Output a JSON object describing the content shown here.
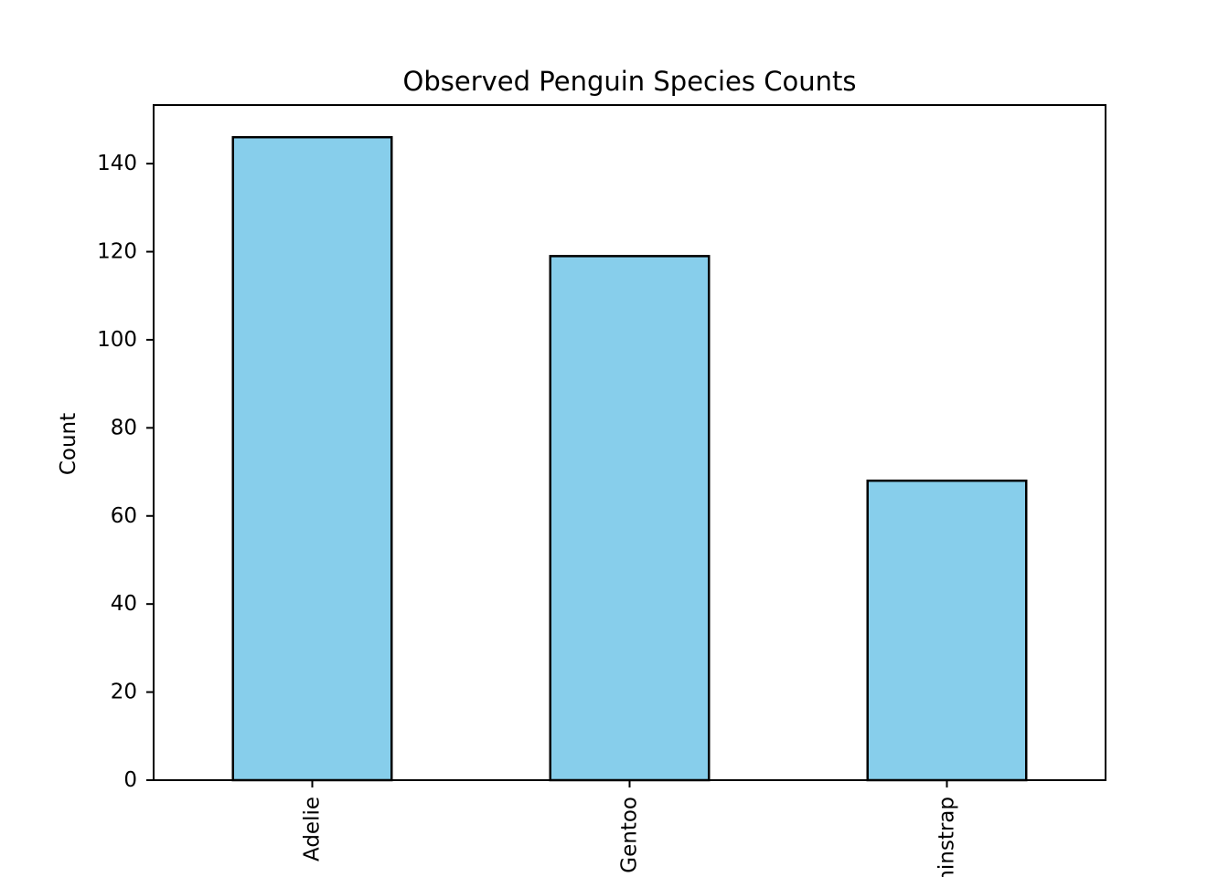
{
  "chart_data": {
    "type": "bar",
    "title": "Observed Penguin Species Counts",
    "xlabel": "",
    "ylabel": "Count",
    "categories": [
      "Adelie",
      "Gentoo",
      "Chinstrap"
    ],
    "values": [
      146,
      119,
      68
    ],
    "ylim": [
      0,
      153.3
    ],
    "yticks": [
      "0",
      "20",
      "40",
      "60",
      "80",
      "100",
      "120",
      "140"
    ],
    "xtick_rotation": 90,
    "grid": false,
    "legend": "none",
    "colors": {
      "bar_fill": "#87CEEB",
      "bar_edge": "#000000",
      "axes": "#000000",
      "background": "#ffffff"
    }
  }
}
